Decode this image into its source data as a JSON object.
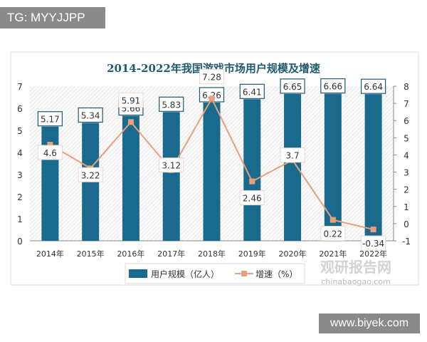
{
  "watermark_top": "TG: MYYJJPP",
  "watermark_bottom": "www.biyek.com",
  "logo_text": "观研报告网",
  "logo_url_text": "chinabaogao.com",
  "colors": {
    "bar": "#1a6a8e",
    "line": "#e8a07c",
    "title": "#1e5a6e"
  },
  "chart_data": {
    "type": "bar+line",
    "title": "2014-2022年我国游戏市场用户规模及增速",
    "categories": [
      "2014年",
      "2015年",
      "2016年",
      "2017年",
      "2018年",
      "2019年",
      "2020年",
      "2021年",
      "2022年"
    ],
    "series": [
      {
        "name": "用户规模（亿人）",
        "type": "bar",
        "axis": "left",
        "values": [
          5.17,
          5.34,
          5.66,
          5.83,
          6.26,
          6.41,
          6.65,
          6.66,
          6.64
        ]
      },
      {
        "name": "增速（%）",
        "type": "line",
        "axis": "right",
        "values": [
          4.6,
          3.22,
          5.91,
          3.12,
          7.28,
          2.46,
          3.7,
          0.22,
          -0.34
        ]
      }
    ],
    "ylim_left": [
      0,
      7
    ],
    "yticks_left": [
      "0",
      "1",
      "2",
      "3",
      "4",
      "5",
      "6",
      "7"
    ],
    "ylim_right": [
      -1,
      8
    ],
    "yticks_right": [
      "-1",
      "0",
      "1",
      "2",
      "3",
      "4",
      "5",
      "6",
      "7",
      "8"
    ],
    "legend_position": "bottom",
    "grid": false
  }
}
